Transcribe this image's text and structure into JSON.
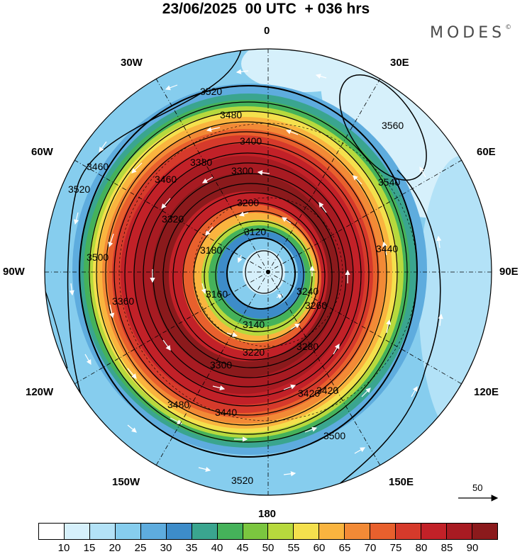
{
  "header": {
    "title": "23/06/2025  00 UTC  + 036 hrs",
    "brand": "MODES",
    "brand_mark": "©"
  },
  "map": {
    "projection": "south polar stereographic",
    "longitude_labels": {
      "top": "0",
      "top_right": "30E",
      "right_upper": "60E",
      "right": "90E",
      "right_lower": "120E",
      "bottom_right": "150E",
      "bottom": "180",
      "bottom_left": "150W",
      "left_lower": "120W",
      "left": "90W",
      "left_upper": "60W",
      "top_left": "30W"
    },
    "contour_labels": [
      "3520",
      "3480",
      "3400",
      "3380",
      "3300",
      "3200",
      "3120",
      "3180",
      "3160",
      "3140",
      "3220",
      "3280",
      "3260",
      "3240",
      "3300",
      "3320",
      "3360",
      "3420",
      "3440",
      "3460",
      "3500",
      "3520",
      "3540",
      "3560",
      "3440",
      "3500",
      "3520",
      "3480",
      "3420",
      "3460"
    ]
  },
  "vector_reference": {
    "label": "50"
  },
  "colorbar": {
    "colors": [
      "#ffffff",
      "#d6f0fb",
      "#b3e2f7",
      "#86cdee",
      "#5eacde",
      "#3d8cc9",
      "#3aa58f",
      "#45b25a",
      "#7bc63f",
      "#b7d93d",
      "#f4e04d",
      "#f9b43f",
      "#f28a36",
      "#e8602d",
      "#d63a2b",
      "#c22128",
      "#a81b22",
      "#8b1a1c"
    ],
    "tick_labels": [
      "10",
      "15",
      "20",
      "25",
      "30",
      "35",
      "40",
      "45",
      "50",
      "55",
      "60",
      "65",
      "70",
      "75",
      "80",
      "85",
      "90"
    ]
  }
}
